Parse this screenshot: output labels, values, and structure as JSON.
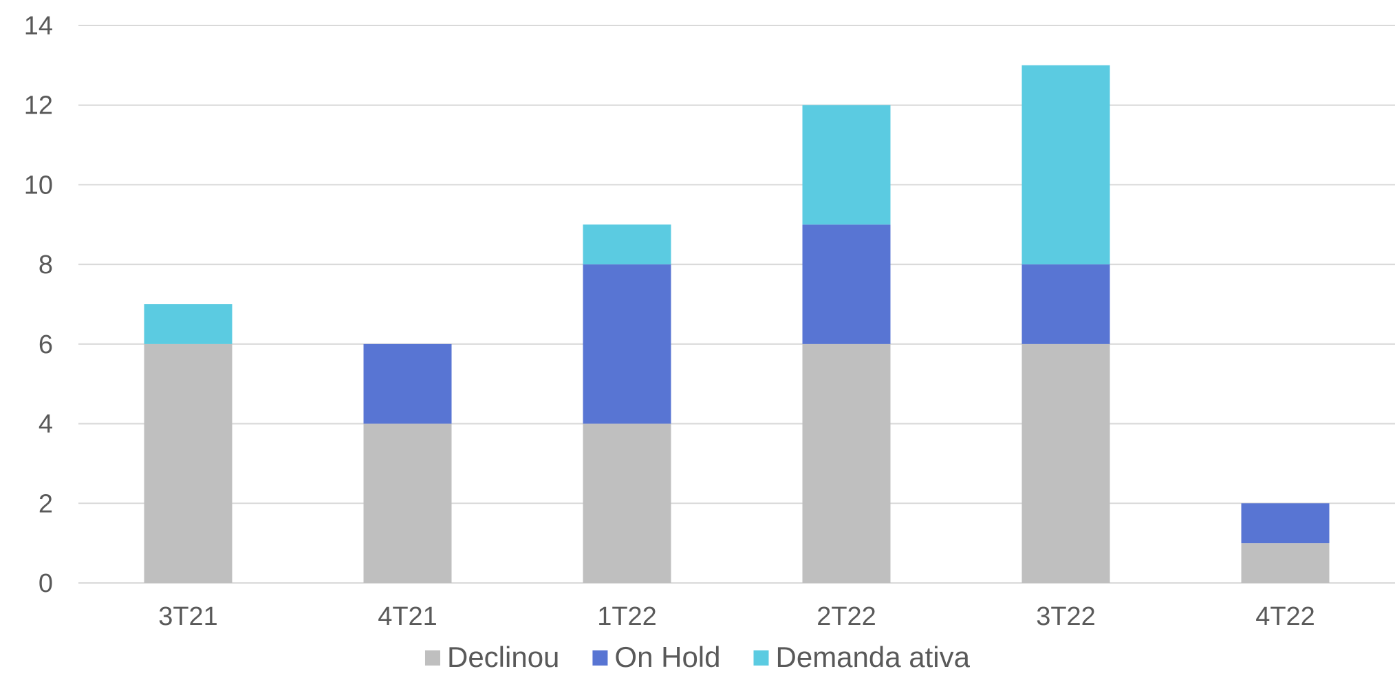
{
  "chart_data": {
    "type": "bar",
    "stacked": true,
    "categories": [
      "3T21",
      "4T21",
      "1T22",
      "2T22",
      "3T22",
      "4T22"
    ],
    "series": [
      {
        "name": "Declinou",
        "color": "#bfbfbf",
        "values": [
          6,
          4,
          4,
          6,
          6,
          1
        ]
      },
      {
        "name": "On Hold",
        "color": "#5875d3",
        "values": [
          0,
          2,
          4,
          3,
          2,
          1
        ]
      },
      {
        "name": "Demanda ativa",
        "color": "#5bcbe1",
        "values": [
          1,
          0,
          1,
          3,
          5,
          0
        ]
      }
    ],
    "y_ticks": [
      "0",
      "2",
      "4",
      "6",
      "8",
      "10",
      "12",
      "14"
    ],
    "ylim": [
      0,
      14
    ],
    "grid": true,
    "legend_position": "bottom"
  }
}
